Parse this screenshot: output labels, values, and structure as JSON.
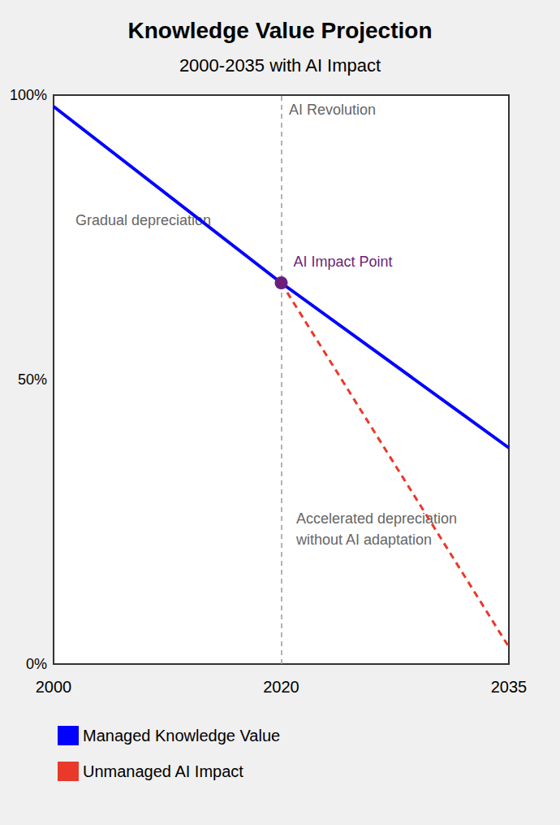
{
  "chart_data": {
    "type": "line",
    "title": "Knowledge Value Projection",
    "subtitle": "2000-2035 with AI Impact",
    "categories": [
      "2000",
      "2020",
      "2035"
    ],
    "series": [
      {
        "name": "Managed Knowledge Value",
        "color": "#0000ff",
        "line_style": "solid",
        "values": [
          98,
          67,
          38
        ]
      },
      {
        "name": "Unmanaged AI Impact",
        "color": "#e8392b",
        "line_style": "dashed",
        "values": [
          null,
          67,
          3
        ]
      }
    ],
    "ylim": [
      0,
      100
    ],
    "yticks": [
      {
        "value": 0,
        "label": "0%"
      },
      {
        "value": 50,
        "label": "50%"
      },
      {
        "value": 100,
        "label": "100%"
      }
    ],
    "grid": false,
    "legend": "bottom-left",
    "vlines": [
      {
        "x": "2020",
        "label": "AI Revolution"
      }
    ],
    "points": [
      {
        "x": "2020",
        "y": 67,
        "label": "AI Impact Point",
        "color": "#6b1f7a"
      }
    ],
    "annotations": [
      "Gradual depreciation",
      "Accelerated depreciation\nwithout AI adaptation"
    ]
  }
}
